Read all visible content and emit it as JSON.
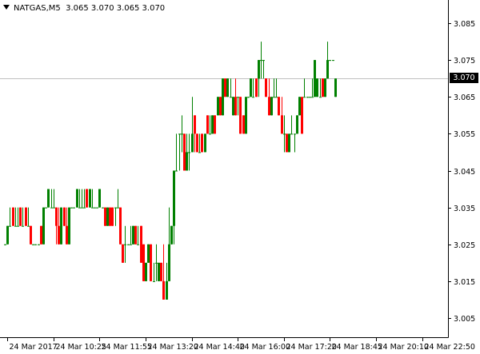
{
  "header": {
    "symbol_timeframe": "NATGAS,M5",
    "ohlc_text": "3.065 3.070 3.065 3.070",
    "menu_icon": "triangle-down-icon"
  },
  "price_tag": {
    "label": "3.070",
    "value": 3.07
  },
  "colors": {
    "bull": "#008000",
    "bear": "#ff0000",
    "axis": "#000000",
    "price_line": "#c0c0c0",
    "tag_bg": "#000000",
    "tag_text": "#ffffff"
  },
  "chart_data": {
    "type": "candlestick",
    "ylim": [
      3.001,
      3.088
    ],
    "y_ticks": [
      "3.085",
      "3.075",
      "3.065",
      "3.055",
      "3.045",
      "3.035",
      "3.025",
      "3.015",
      "3.005"
    ],
    "y_tick_values": [
      3.085,
      3.075,
      3.065,
      3.055,
      3.045,
      3.035,
      3.025,
      3.015,
      3.005
    ],
    "x_ticks": [
      "24 Mar 2017",
      "24 Mar 10:25",
      "24 Mar 11:55",
      "24 Mar 13:20",
      "24 Mar 14:40",
      "24 Mar 16:00",
      "24 Mar 17:20",
      "24 Mar 18:45",
      "24 Mar 20:10",
      "24 Mar 22:50"
    ],
    "x_tick_bar_index": [
      1,
      19,
      37,
      55,
      73,
      91,
      109,
      127,
      145,
      163
    ],
    "last_price": 3.07,
    "bars": [
      [
        3.025,
        3.025,
        3.025,
        3.025
      ],
      [
        3.025,
        3.03,
        3.025,
        3.03
      ],
      [
        3.03,
        3.035,
        3.03,
        3.03
      ],
      [
        3.035,
        3.035,
        3.03,
        3.03
      ],
      [
        3.03,
        3.035,
        3.03,
        3.03
      ],
      [
        3.03,
        3.035,
        3.03,
        3.03
      ],
      [
        3.035,
        3.035,
        3.03,
        3.03
      ],
      [
        3.03,
        3.035,
        3.03,
        3.03
      ],
      [
        3.035,
        3.035,
        3.03,
        3.03
      ],
      [
        3.03,
        3.035,
        3.03,
        3.03
      ],
      [
        3.03,
        3.03,
        3.025,
        3.025
      ],
      [
        3.025,
        3.025,
        3.025,
        3.025
      ],
      [
        3.025,
        3.025,
        3.025,
        3.025
      ],
      [
        3.025,
        3.025,
        3.025,
        3.025
      ],
      [
        3.03,
        3.03,
        3.025,
        3.025
      ],
      [
        3.025,
        3.035,
        3.025,
        3.035
      ],
      [
        3.035,
        3.035,
        3.035,
        3.035
      ],
      [
        3.035,
        3.04,
        3.035,
        3.04
      ],
      [
        3.035,
        3.04,
        3.035,
        3.035
      ],
      [
        3.035,
        3.04,
        3.035,
        3.035
      ],
      [
        3.035,
        3.035,
        3.025,
        3.03
      ],
      [
        3.03,
        3.035,
        3.025,
        3.025
      ],
      [
        3.025,
        3.035,
        3.025,
        3.035
      ],
      [
        3.035,
        3.035,
        3.03,
        3.03
      ],
      [
        3.03,
        3.035,
        3.025,
        3.025
      ],
      [
        3.025,
        3.035,
        3.025,
        3.035
      ],
      [
        3.035,
        3.035,
        3.035,
        3.035
      ],
      [
        3.035,
        3.035,
        3.035,
        3.035
      ],
      [
        3.035,
        3.04,
        3.035,
        3.04
      ],
      [
        3.035,
        3.04,
        3.035,
        3.035
      ],
      [
        3.035,
        3.04,
        3.035,
        3.035
      ],
      [
        3.035,
        3.04,
        3.035,
        3.035
      ],
      [
        3.04,
        3.04,
        3.035,
        3.035
      ],
      [
        3.035,
        3.04,
        3.035,
        3.04
      ],
      [
        3.035,
        3.04,
        3.035,
        3.035
      ],
      [
        3.035,
        3.035,
        3.035,
        3.035
      ],
      [
        3.035,
        3.035,
        3.035,
        3.035
      ],
      [
        3.035,
        3.04,
        3.035,
        3.04
      ],
      [
        3.035,
        3.035,
        3.035,
        3.035
      ],
      [
        3.035,
        3.035,
        3.03,
        3.03
      ],
      [
        3.03,
        3.035,
        3.03,
        3.035
      ],
      [
        3.035,
        3.035,
        3.03,
        3.03
      ],
      [
        3.035,
        3.035,
        3.03,
        3.03
      ],
      [
        3.035,
        3.035,
        3.03,
        3.035
      ],
      [
        3.035,
        3.04,
        3.035,
        3.035
      ],
      [
        3.035,
        3.035,
        3.025,
        3.025
      ],
      [
        3.025,
        3.025,
        3.02,
        3.02
      ],
      [
        3.025,
        3.03,
        3.02,
        3.025
      ],
      [
        3.025,
        3.025,
        3.025,
        3.025
      ],
      [
        3.025,
        3.03,
        3.025,
        3.025
      ],
      [
        3.025,
        3.03,
        3.025,
        3.03
      ],
      [
        3.03,
        3.03,
        3.025,
        3.025
      ],
      [
        3.025,
        3.03,
        3.025,
        3.025
      ],
      [
        3.03,
        3.03,
        3.02,
        3.02
      ],
      [
        3.025,
        3.025,
        3.015,
        3.015
      ],
      [
        3.015,
        3.02,
        3.015,
        3.02
      ],
      [
        3.02,
        3.025,
        3.02,
        3.025
      ],
      [
        3.025,
        3.025,
        3.015,
        3.015
      ],
      [
        3.015,
        3.02,
        3.015,
        3.015
      ],
      [
        3.02,
        3.025,
        3.015,
        3.02
      ],
      [
        3.015,
        3.02,
        3.015,
        3.02
      ],
      [
        3.02,
        3.02,
        3.015,
        3.015
      ],
      [
        3.015,
        3.025,
        3.01,
        3.01
      ],
      [
        3.01,
        3.02,
        3.01,
        3.015
      ],
      [
        3.015,
        3.035,
        3.015,
        3.025
      ],
      [
        3.025,
        3.03,
        3.025,
        3.03
      ],
      [
        3.03,
        3.045,
        3.025,
        3.045
      ],
      [
        3.045,
        3.055,
        3.045,
        3.045
      ],
      [
        3.055,
        3.055,
        3.045,
        3.055
      ],
      [
        3.055,
        3.06,
        3.05,
        3.055
      ],
      [
        3.055,
        3.055,
        3.045,
        3.045
      ],
      [
        3.045,
        3.055,
        3.045,
        3.05
      ],
      [
        3.05,
        3.055,
        3.045,
        3.05
      ],
      [
        3.05,
        3.065,
        3.05,
        3.055
      ],
      [
        3.06,
        3.06,
        3.05,
        3.055
      ],
      [
        3.055,
        3.055,
        3.05,
        3.05
      ],
      [
        3.05,
        3.055,
        3.05,
        3.05
      ],
      [
        3.055,
        3.055,
        3.05,
        3.05
      ],
      [
        3.05,
        3.055,
        3.05,
        3.055
      ],
      [
        3.06,
        3.06,
        3.055,
        3.055
      ],
      [
        3.055,
        3.06,
        3.055,
        3.055
      ],
      [
        3.055,
        3.06,
        3.055,
        3.06
      ],
      [
        3.06,
        3.06,
        3.055,
        3.055
      ],
      [
        3.06,
        3.065,
        3.06,
        3.065
      ],
      [
        3.065,
        3.065,
        3.06,
        3.06
      ],
      [
        3.06,
        3.07,
        3.06,
        3.07
      ],
      [
        3.07,
        3.07,
        3.065,
        3.065
      ],
      [
        3.065,
        3.07,
        3.065,
        3.07
      ],
      [
        3.065,
        3.07,
        3.065,
        3.065
      ],
      [
        3.06,
        3.065,
        3.06,
        3.065
      ],
      [
        3.065,
        3.07,
        3.06,
        3.06
      ],
      [
        3.065,
        3.065,
        3.06,
        3.065
      ],
      [
        3.065,
        3.065,
        3.055,
        3.055
      ],
      [
        3.06,
        3.06,
        3.055,
        3.055
      ],
      [
        3.055,
        3.065,
        3.055,
        3.065
      ],
      [
        3.065,
        3.065,
        3.065,
        3.065
      ],
      [
        3.065,
        3.07,
        3.065,
        3.07
      ],
      [
        3.065,
        3.07,
        3.065,
        3.065
      ],
      [
        3.07,
        3.07,
        3.065,
        3.065
      ],
      [
        3.07,
        3.075,
        3.065,
        3.075
      ],
      [
        3.075,
        3.08,
        3.07,
        3.075
      ],
      [
        3.075,
        3.075,
        3.07,
        3.075
      ],
      [
        3.07,
        3.07,
        3.065,
        3.065
      ],
      [
        3.065,
        3.07,
        3.06,
        3.06
      ],
      [
        3.06,
        3.065,
        3.06,
        3.065
      ],
      [
        3.065,
        3.07,
        3.065,
        3.065
      ],
      [
        3.065,
        3.07,
        3.065,
        3.065
      ],
      [
        3.065,
        3.065,
        3.06,
        3.06
      ],
      [
        3.06,
        3.065,
        3.055,
        3.055
      ],
      [
        3.055,
        3.06,
        3.05,
        3.055
      ],
      [
        3.055,
        3.055,
        3.05,
        3.05
      ],
      [
        3.05,
        3.055,
        3.05,
        3.055
      ],
      [
        3.055,
        3.06,
        3.055,
        3.055
      ],
      [
        3.055,
        3.055,
        3.05,
        3.055
      ],
      [
        3.055,
        3.06,
        3.055,
        3.06
      ],
      [
        3.06,
        3.065,
        3.06,
        3.065
      ],
      [
        3.065,
        3.065,
        3.055,
        3.055
      ],
      [
        3.065,
        3.07,
        3.065,
        3.065
      ],
      [
        3.065,
        3.065,
        3.065,
        3.065
      ],
      [
        3.065,
        3.065,
        3.065,
        3.065
      ],
      [
        3.065,
        3.07,
        3.065,
        3.065
      ],
      [
        3.065,
        3.075,
        3.065,
        3.075
      ],
      [
        3.065,
        3.07,
        3.065,
        3.07
      ],
      [
        3.065,
        3.07,
        3.065,
        3.065
      ],
      [
        3.07,
        3.07,
        3.065,
        3.065
      ],
      [
        3.065,
        3.07,
        3.065,
        3.07
      ],
      [
        3.07,
        3.08,
        3.07,
        3.075
      ],
      [
        3.075,
        3.075,
        3.075,
        3.075
      ],
      [
        3.075,
        3.075,
        3.075,
        3.075
      ],
      [
        3.065,
        3.07,
        3.065,
        3.07
      ]
    ]
  }
}
